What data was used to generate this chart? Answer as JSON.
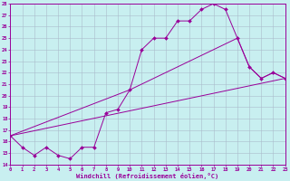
{
  "bg_color": "#c8eff0",
  "line_color": "#990099",
  "grid_color": "#aabbcc",
  "xlim": [
    0,
    23
  ],
  "ylim": [
    14,
    28
  ],
  "xticks": [
    0,
    1,
    2,
    3,
    4,
    5,
    6,
    7,
    8,
    9,
    10,
    11,
    12,
    13,
    14,
    15,
    16,
    17,
    18,
    19,
    20,
    21,
    22,
    23
  ],
  "yticks": [
    14,
    15,
    16,
    17,
    18,
    19,
    20,
    21,
    22,
    23,
    24,
    25,
    26,
    27,
    28
  ],
  "xlabel": "Windchill (Refroidissement éolien,°C)",
  "line1_x": [
    0,
    1,
    2,
    3,
    4,
    5,
    6,
    7,
    8,
    9,
    10,
    11,
    12,
    13,
    14,
    15,
    16,
    17,
    18,
    19,
    20,
    21,
    22,
    23
  ],
  "line1_y": [
    16.5,
    15.5,
    14.8,
    15.5,
    14.8,
    14.5,
    15.5,
    15.5,
    18.5,
    18.8,
    20.5,
    24.0,
    25.0,
    25.0,
    26.5,
    26.5,
    27.5,
    28.0,
    27.5,
    25.0,
    22.5,
    21.5,
    22.0,
    21.5
  ],
  "line2_x": [
    0,
    10,
    19,
    20,
    21,
    22,
    23
  ],
  "line2_y": [
    16.5,
    20.5,
    25.0,
    22.5,
    21.5,
    22.0,
    21.5
  ],
  "line3_x": [
    0,
    23
  ],
  "line3_y": [
    16.5,
    21.5
  ]
}
